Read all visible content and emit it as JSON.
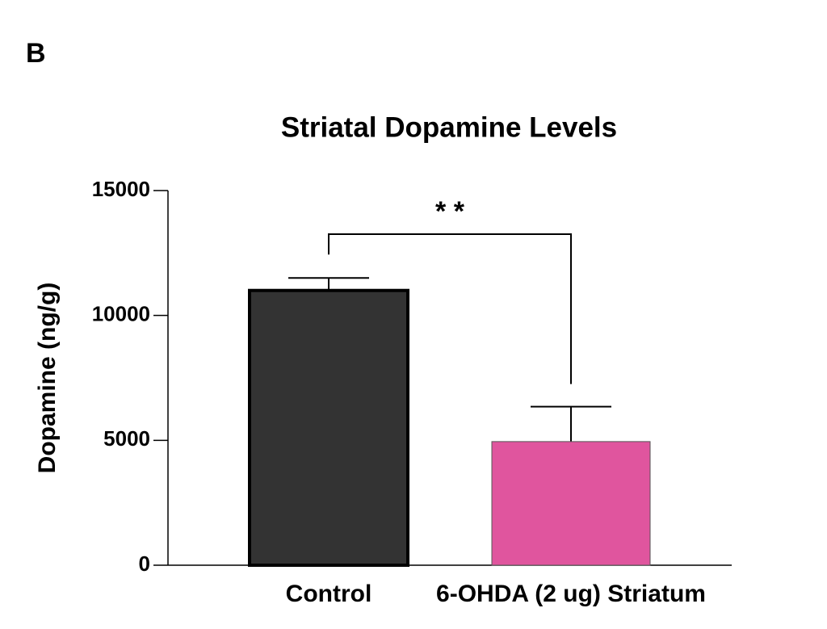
{
  "panel_label": "B",
  "chart_data": {
    "type": "bar",
    "title": "Striatal Dopamine Levels",
    "y_label": "Dopamine (ng/g)",
    "categories": [
      "Control",
      "6-OHDA (2 ug) Striatum"
    ],
    "values": [
      11000,
      4950
    ],
    "errors": [
      500,
      1400
    ],
    "colors": [
      "#333333",
      "#e0559e"
    ],
    "edge_colors": [
      "#000000",
      "#555555"
    ],
    "ylim": [
      0,
      15000
    ],
    "yticks": [
      0,
      5000,
      10000,
      15000
    ],
    "grid": false,
    "annotation": "* *"
  }
}
